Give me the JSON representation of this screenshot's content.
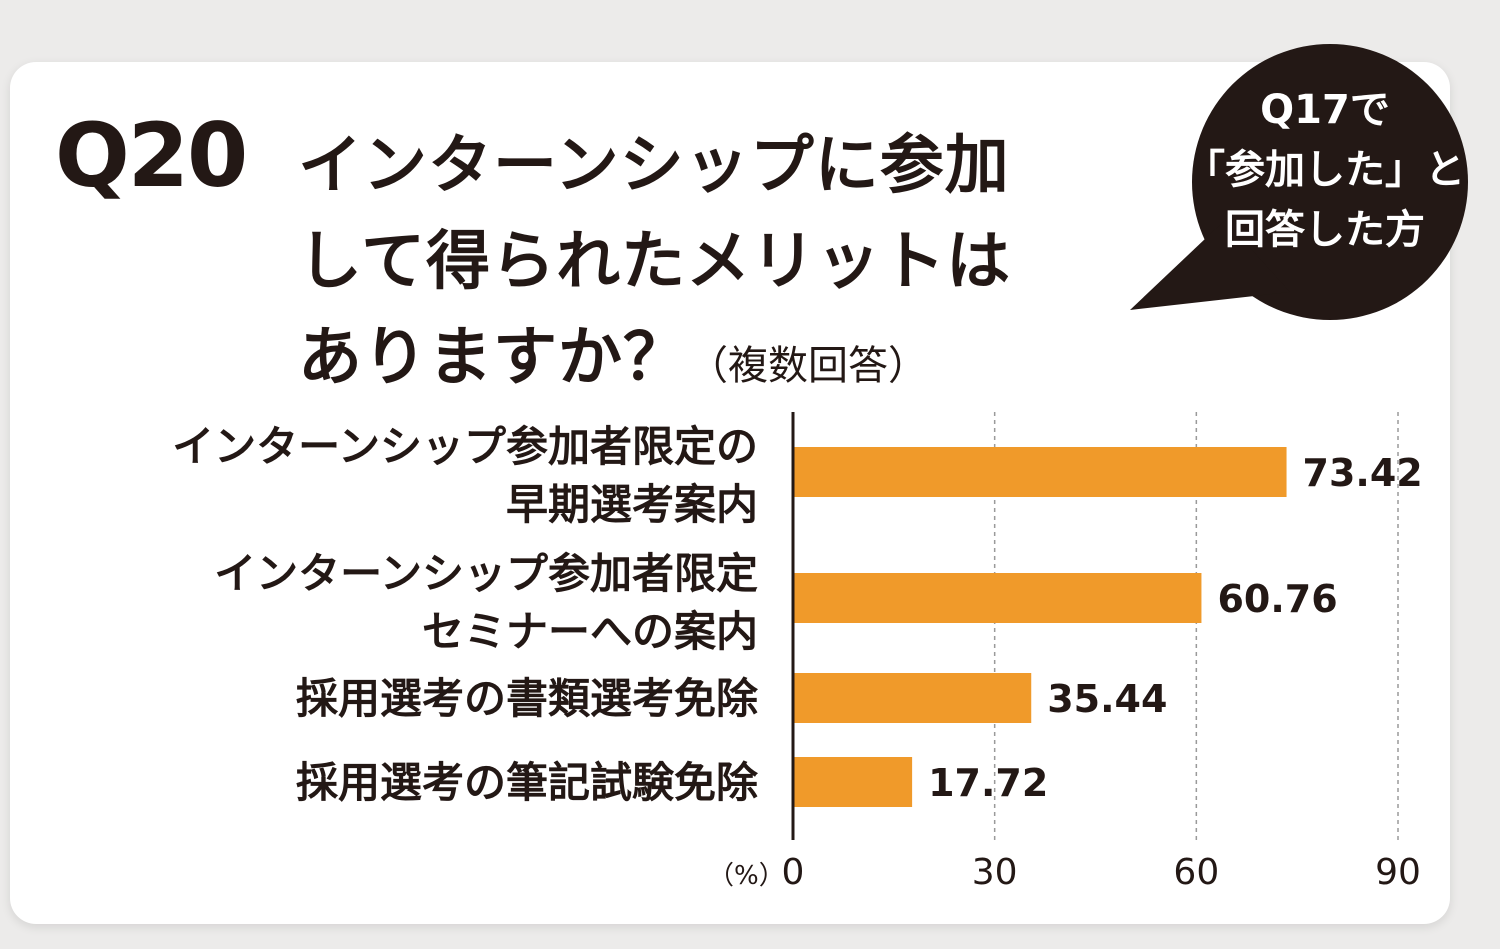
{
  "header": {
    "q_number": "Q20",
    "title_lines": [
      "インターンシップに参加",
      "して得られたメリットは",
      "ありますか？"
    ],
    "title_note": "（複数回答）"
  },
  "bubble": {
    "lines": [
      "Q17で",
      "「参加した」と",
      "回答した方"
    ],
    "color": "#231815"
  },
  "chart_data": {
    "type": "bar",
    "orientation": "horizontal",
    "categories": [
      [
        "インターンシップ参加者限定の",
        "早期選考案内"
      ],
      [
        "インターンシップ参加者限定",
        "セミナーへの案内"
      ],
      [
        "採用選考の書類選考免除"
      ],
      [
        "採用選考の筆記試験免除"
      ]
    ],
    "values": [
      73.42,
      60.76,
      35.44,
      17.72
    ],
    "value_labels": [
      "73.42",
      "60.76",
      "35.44",
      "17.72"
    ],
    "xlim": [
      0,
      90
    ],
    "ticks": [
      0,
      30,
      60,
      90
    ],
    "unit_label": "（%）",
    "grid": "vertical-dashed",
    "bar_color": "#f09a2a"
  }
}
